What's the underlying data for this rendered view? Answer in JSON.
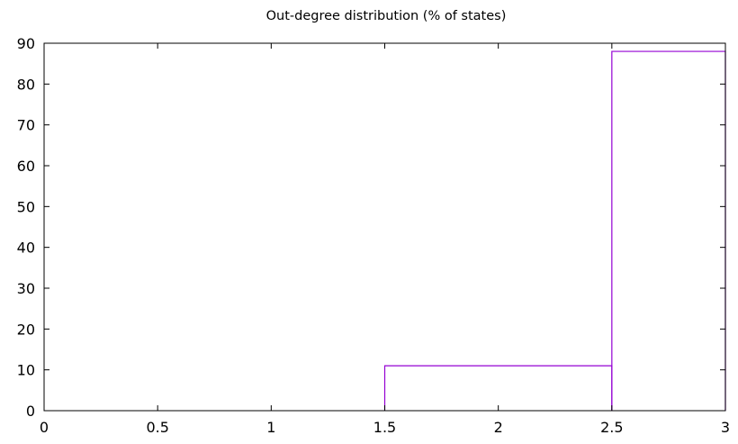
{
  "chart_data": {
    "type": "bar",
    "title": "Out-degree distribution (% of states)",
    "xlabel": "",
    "ylabel": "",
    "xlim": [
      0,
      3
    ],
    "ylim": [
      0,
      90
    ],
    "x_ticks": [
      "0",
      "0.5",
      "1",
      "1.5",
      "2",
      "2.5",
      "3"
    ],
    "y_ticks": [
      "0",
      "10",
      "20",
      "30",
      "40",
      "50",
      "60",
      "70",
      "80",
      "90"
    ],
    "grid": false,
    "legend": "none",
    "bins": [
      {
        "category": "2",
        "x_start": 1.5,
        "x_end": 2.5,
        "value": 11
      },
      {
        "category": "3",
        "x_start": 2.5,
        "x_end": 3.0,
        "value": 88
      }
    ],
    "series": [
      {
        "values": [
          11,
          88
        ],
        "color": "#9400d3"
      }
    ]
  }
}
